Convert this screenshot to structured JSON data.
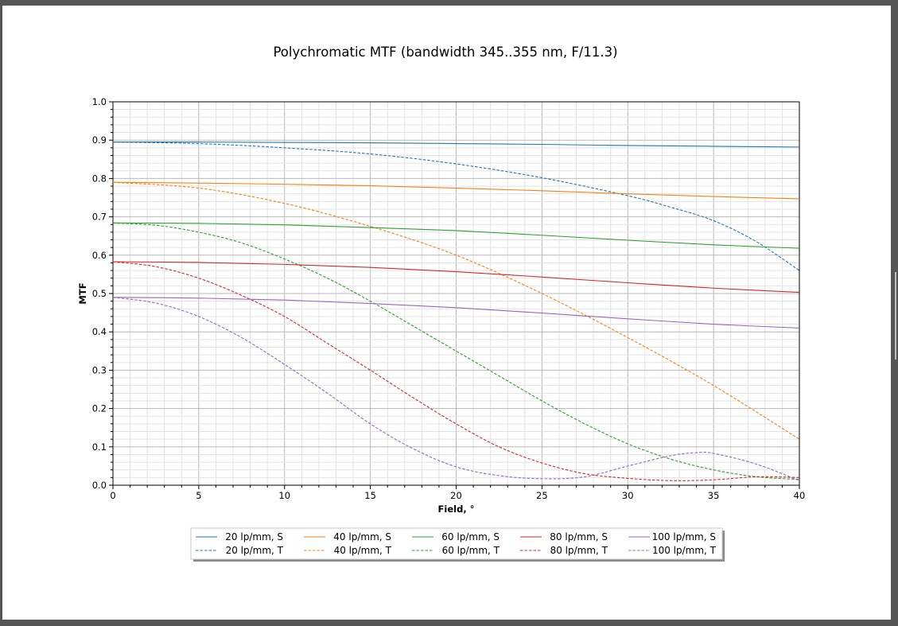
{
  "chart_data": {
    "type": "line",
    "title": "Polychromatic MTF (bandwidth 345..355 nm, F/11.3)",
    "xlabel": "Field, °",
    "ylabel": "MTF",
    "xlim": [
      0,
      40
    ],
    "ylim": [
      0,
      1.0
    ],
    "xticks": [
      "0",
      "5",
      "10",
      "15",
      "20",
      "25",
      "30",
      "35",
      "40"
    ],
    "yticks": [
      "0.0",
      "0.1",
      "0.2",
      "0.3",
      "0.4",
      "0.5",
      "0.6",
      "0.7",
      "0.8",
      "0.9",
      "1.0"
    ],
    "grid": true,
    "legend_position": "bottom-center",
    "series": [
      {
        "name": "20 lp/mm, S",
        "color": "#1f77b4",
        "style": "solid",
        "x": [
          0,
          5,
          10,
          15,
          20,
          25,
          30,
          35,
          40
        ],
        "y": [
          0.895,
          0.895,
          0.894,
          0.893,
          0.891,
          0.889,
          0.886,
          0.884,
          0.882
        ]
      },
      {
        "name": "20 lp/mm, T",
        "color": "#1f77b4",
        "style": "dashed",
        "x": [
          0,
          5,
          10,
          15,
          20,
          25,
          30,
          32.5,
          35,
          37.5,
          40
        ],
        "y": [
          0.895,
          0.891,
          0.88,
          0.864,
          0.838,
          0.802,
          0.755,
          0.725,
          0.69,
          0.635,
          0.56
        ]
      },
      {
        "name": "40 lp/mm, S",
        "color": "#ff7f0e",
        "style": "solid",
        "x": [
          0,
          5,
          10,
          15,
          20,
          25,
          30,
          35,
          40
        ],
        "y": [
          0.79,
          0.788,
          0.785,
          0.781,
          0.775,
          0.768,
          0.76,
          0.753,
          0.747
        ]
      },
      {
        "name": "40 lp/mm, T",
        "color": "#ff7f0e",
        "style": "dashed",
        "x": [
          0,
          5,
          10,
          15,
          20,
          25,
          30,
          35,
          40
        ],
        "y": [
          0.79,
          0.775,
          0.735,
          0.675,
          0.6,
          0.5,
          0.385,
          0.26,
          0.12
        ]
      },
      {
        "name": "60 lp/mm, S",
        "color": "#2ca02c",
        "style": "solid",
        "x": [
          0,
          5,
          10,
          15,
          20,
          25,
          30,
          35,
          40
        ],
        "y": [
          0.684,
          0.683,
          0.679,
          0.672,
          0.664,
          0.652,
          0.639,
          0.627,
          0.618
        ]
      },
      {
        "name": "60 lp/mm, T",
        "color": "#2ca02c",
        "style": "dashed",
        "x": [
          0,
          2.5,
          5,
          7.5,
          10,
          12.5,
          15,
          17.5,
          20,
          22.5,
          25,
          27.5,
          30,
          32.5,
          35,
          37.5,
          40
        ],
        "y": [
          0.684,
          0.678,
          0.66,
          0.632,
          0.59,
          0.54,
          0.48,
          0.415,
          0.35,
          0.285,
          0.22,
          0.16,
          0.108,
          0.068,
          0.04,
          0.022,
          0.015
        ]
      },
      {
        "name": "80 lp/mm, S",
        "color": "#d62728",
        "style": "solid",
        "x": [
          0,
          5,
          10,
          15,
          20,
          25,
          30,
          35,
          40
        ],
        "y": [
          0.583,
          0.581,
          0.576,
          0.568,
          0.557,
          0.543,
          0.528,
          0.514,
          0.503
        ]
      },
      {
        "name": "80 lp/mm, T",
        "color": "#d62728",
        "style": "dashed",
        "x": [
          0,
          2.5,
          5,
          7.5,
          10,
          12.5,
          15,
          17.5,
          20,
          22.5,
          25,
          27.5,
          30,
          32.5,
          35,
          37.5,
          40
        ],
        "y": [
          0.583,
          0.57,
          0.54,
          0.495,
          0.44,
          0.37,
          0.3,
          0.228,
          0.16,
          0.1,
          0.058,
          0.03,
          0.018,
          0.012,
          0.014,
          0.022,
          0.02
        ]
      },
      {
        "name": "100 lp/mm, S",
        "color": "#9467bd",
        "style": "solid",
        "x": [
          0,
          5,
          10,
          15,
          20,
          25,
          30,
          35,
          40
        ],
        "y": [
          0.49,
          0.488,
          0.483,
          0.474,
          0.463,
          0.449,
          0.434,
          0.42,
          0.41
        ]
      },
      {
        "name": "100 lp/mm, T",
        "color": "#9467bd",
        "style": "dashed",
        "x": [
          0,
          2.5,
          5,
          7.5,
          10,
          12.5,
          15,
          17.5,
          20,
          22.5,
          25,
          27.5,
          30,
          32.5,
          34,
          35,
          37.5,
          40
        ],
        "y": [
          0.49,
          0.475,
          0.44,
          0.385,
          0.315,
          0.24,
          0.16,
          0.095,
          0.048,
          0.025,
          0.017,
          0.022,
          0.05,
          0.077,
          0.085,
          0.083,
          0.055,
          0.012
        ]
      }
    ]
  }
}
